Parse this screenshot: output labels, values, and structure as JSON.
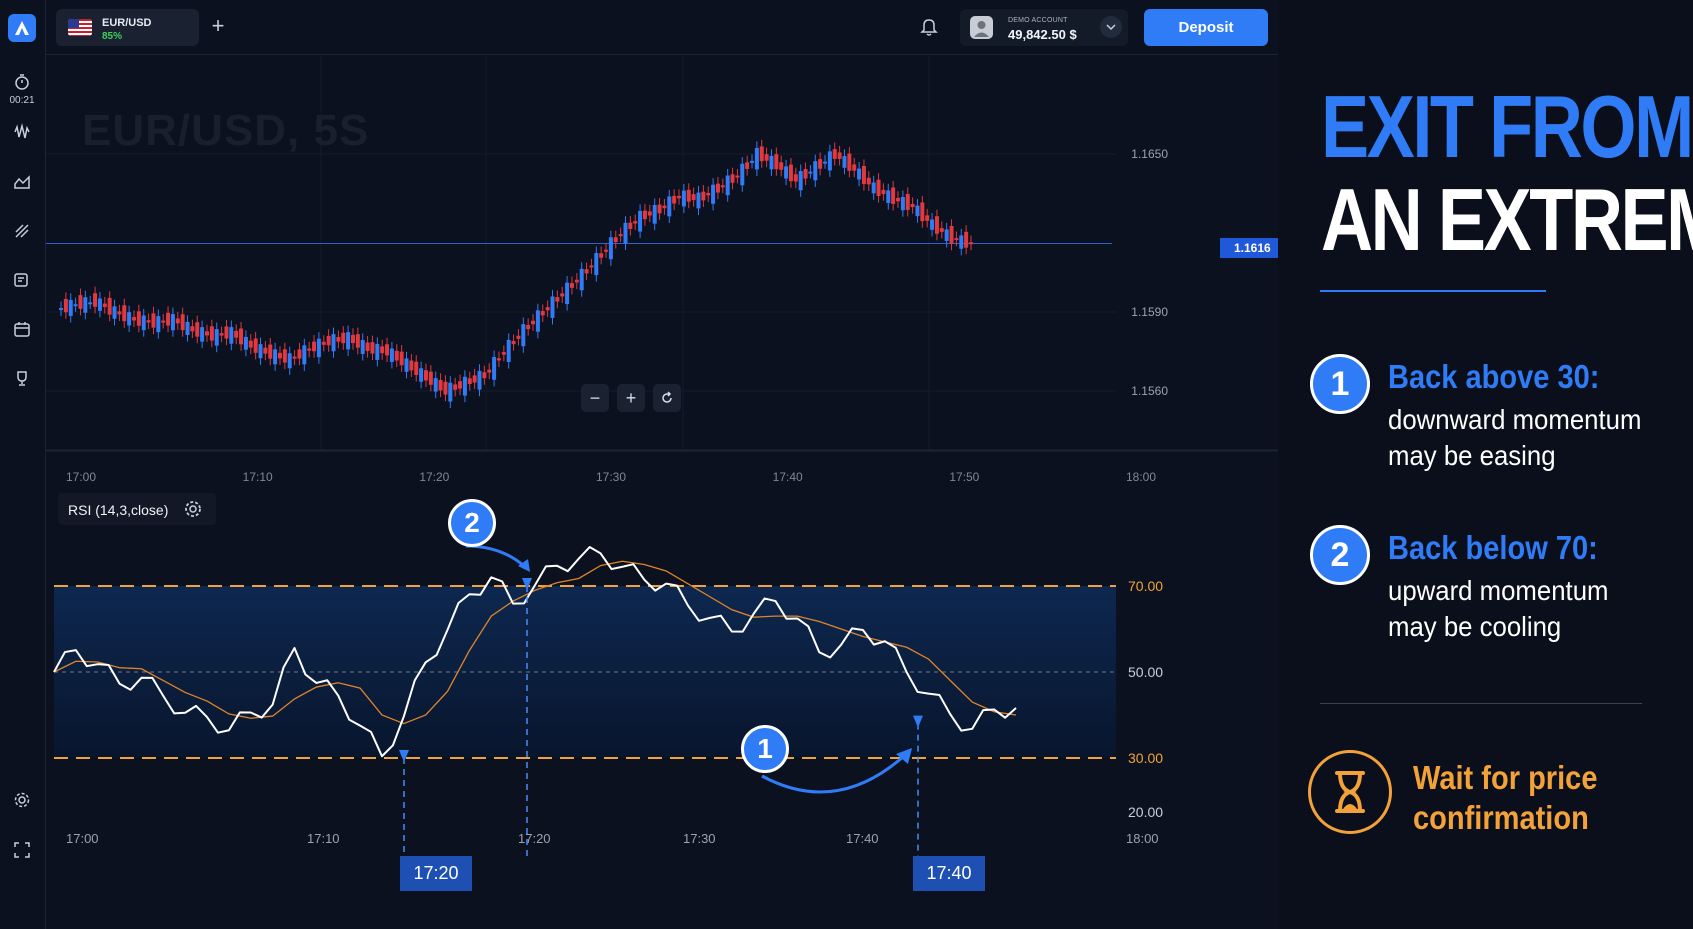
{
  "header": {
    "asset": {
      "name": "EUR/USD",
      "payout": "85%"
    },
    "account": {
      "label": "DEMO ACCOUNT",
      "balance": "49,842.50 $"
    },
    "deposit_label": "Deposit"
  },
  "rail": {
    "timer": "00:21"
  },
  "chart": {
    "watermark": "EUR/USD, 5S",
    "current_price": "1.1616",
    "price_ticks": [
      "1.1650",
      "1.1590",
      "1.1560"
    ],
    "time_ticks": [
      "17:00",
      "17:10",
      "17:20",
      "17:30",
      "17:40",
      "17:50",
      "18:00"
    ],
    "zoom_controls": {
      "out": "−",
      "in": "+"
    }
  },
  "chart_data": {
    "type": "candlestick",
    "title": "EUR/USD, 5S",
    "x_ticks": [
      "17:00",
      "17:10",
      "17:20",
      "17:30",
      "17:40",
      "17:50",
      "18:00"
    ],
    "y_ticks": [
      "1.1650",
      "1.1590",
      "1.1560"
    ],
    "current_price": 1.1616,
    "close_path": [
      1.1591,
      1.1593,
      1.1594,
      1.159,
      1.1587,
      1.1586,
      1.1587,
      1.1583,
      1.1581,
      1.1582,
      1.1577,
      1.1574,
      1.1572,
      1.1576,
      1.1579,
      1.158,
      1.1576,
      1.1575,
      1.157,
      1.1565,
      1.156,
      1.1563,
      1.1566,
      1.1575,
      1.1583,
      1.159,
      1.1597,
      1.1604,
      1.1612,
      1.162,
      1.1626,
      1.1629,
      1.1634,
      1.1633,
      1.1637,
      1.1642,
      1.165,
      1.1646,
      1.164,
      1.1645,
      1.165,
      1.1644,
      1.1637,
      1.1633,
      1.163,
      1.1623,
      1.1618,
      1.1616
    ],
    "rsi": {
      "label": "RSI (14,3,close)",
      "levels": [
        "70.00",
        "50.00",
        "30.00",
        "20.00"
      ],
      "x_ticks": [
        "17:00",
        "17:10",
        "17:20",
        "17:30",
        "17:40",
        "18:00"
      ],
      "values": [
        50,
        55,
        52,
        47,
        49,
        44,
        41,
        39,
        37,
        40,
        43,
        55,
        48,
        44,
        38,
        30,
        40,
        52,
        60,
        68,
        72,
        66,
        70,
        75,
        76,
        78,
        74,
        72,
        70,
        66,
        62,
        60,
        63,
        67,
        62,
        55,
        56,
        60,
        57,
        50,
        45,
        40,
        37,
        41,
        42
      ]
    }
  },
  "markers": {
    "time_tag_1": "17:20",
    "time_tag_2": "17:40",
    "badge_1": "1",
    "badge_2": "2"
  },
  "panel": {
    "title_line1": "EXIT FROM",
    "title_line2": "AN EXTREME",
    "points": [
      {
        "num": "1",
        "heading": "Back above 30:",
        "line1": "downward momentum",
        "line2": "may be easing"
      },
      {
        "num": "2",
        "heading": "Back below 70:",
        "line1": "upward momentum",
        "line2": "may be cooling"
      }
    ],
    "footer_line1": "Wait for price",
    "footer_line2": "confirmation"
  },
  "colors": {
    "accent": "#2f7cf6",
    "orange": "#f3a23a",
    "bull": "#2f7cf6",
    "bear": "#e2383e",
    "background": "#0b111e"
  }
}
